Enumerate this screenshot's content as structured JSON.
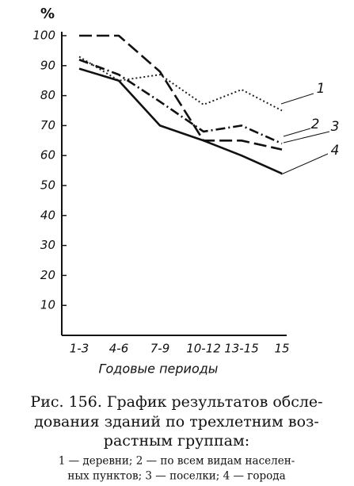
{
  "chart_data": {
    "type": "line",
    "y_label": "%",
    "x_label": "Годовые периоды",
    "categories": [
      "1-3",
      "4-6",
      "7-9",
      "10-12",
      "13-15",
      "15"
    ],
    "ylim": [
      0,
      100
    ],
    "yticks": [
      10,
      20,
      30,
      40,
      50,
      60,
      70,
      80,
      90,
      100
    ],
    "series": [
      {
        "label": "1",
        "style": "dotted",
        "color": "#222",
        "values": [
          93,
          85,
          87,
          77,
          82,
          75
        ]
      },
      {
        "label": "2",
        "style": "dashdot",
        "color": "#111",
        "values": [
          92,
          87,
          78,
          68,
          70,
          64
        ]
      },
      {
        "label": "3",
        "style": "dashed",
        "color": "#111",
        "values": [
          100,
          100,
          88,
          65,
          65,
          62
        ]
      },
      {
        "label": "4",
        "style": "solid",
        "color": "#111",
        "values": [
          89,
          85,
          70,
          65,
          60,
          54
        ]
      }
    ],
    "caption": [
      "Рис. 156. График результатов обсле-",
      "дования зданий по трехлетним воз-",
      "растным группам:"
    ],
    "legend_text": [
      "1 — деревни; 2 — по всем видам населен-",
      "ных пунктов; 3 — поселки; 4 — города"
    ]
  }
}
